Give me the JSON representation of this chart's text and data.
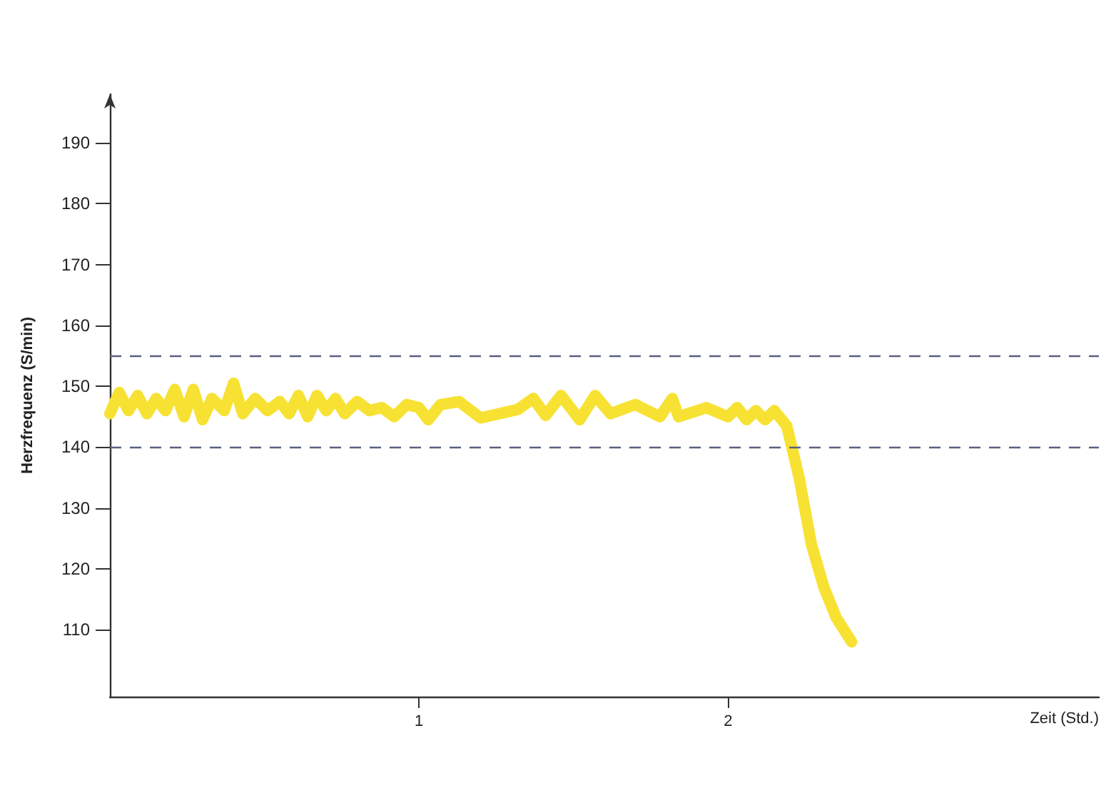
{
  "chart_data": {
    "type": "line",
    "xlabel": "Zeit (Std.)",
    "ylabel": "Herzfrequenz (S/min)",
    "xlim": [
      0,
      3.2
    ],
    "xticks": [
      1,
      2
    ],
    "ylim": [
      99,
      198
    ],
    "yticks": [
      110,
      120,
      130,
      140,
      150,
      160,
      170,
      180,
      190
    ],
    "grid": false,
    "line_style": "solid",
    "series": [
      {
        "color": "#f7e234",
        "x": [
          0,
          0.03,
          0.06,
          0.09,
          0.12,
          0.15,
          0.18,
          0.21,
          0.24,
          0.27,
          0.3,
          0.33,
          0.37,
          0.4,
          0.43,
          0.47,
          0.51,
          0.55,
          0.58,
          0.61,
          0.64,
          0.67,
          0.7,
          0.73,
          0.76,
          0.8,
          0.84,
          0.88,
          0.92,
          0.96,
          1.0,
          1.03,
          1.07,
          1.13,
          1.2,
          1.32,
          1.37,
          1.41,
          1.46,
          1.52,
          1.57,
          1.62,
          1.7,
          1.78,
          1.82,
          1.84,
          1.93,
          2.0,
          2.03,
          2.06,
          2.09,
          2.12,
          2.15,
          2.19,
          2.23,
          2.27,
          2.31,
          2.35,
          2.4
        ],
        "values": [
          145.5,
          149,
          146,
          148.5,
          145.5,
          148,
          146,
          149.5,
          145,
          149.5,
          144.5,
          148,
          146,
          150.5,
          145.5,
          148,
          146,
          147.5,
          145.5,
          148.5,
          145,
          148.5,
          146,
          148,
          145.5,
          147.5,
          146,
          146.5,
          145,
          147,
          146.5,
          144.5,
          147,
          147.5,
          144.8,
          146.2,
          148,
          145.2,
          148.5,
          144.5,
          148.5,
          145.5,
          147,
          145,
          148,
          145,
          146.5,
          145,
          146.5,
          144.5,
          146,
          144.5,
          146,
          143.5,
          135,
          124,
          117,
          112,
          108
        ]
      }
    ],
    "ref_lines": [
      {
        "axis": "y",
        "value": 155,
        "color": "#5a6080",
        "line_style": "dashed"
      },
      {
        "axis": "y",
        "value": 140,
        "color": "#5a6080",
        "line_style": "dashed"
      }
    ]
  }
}
